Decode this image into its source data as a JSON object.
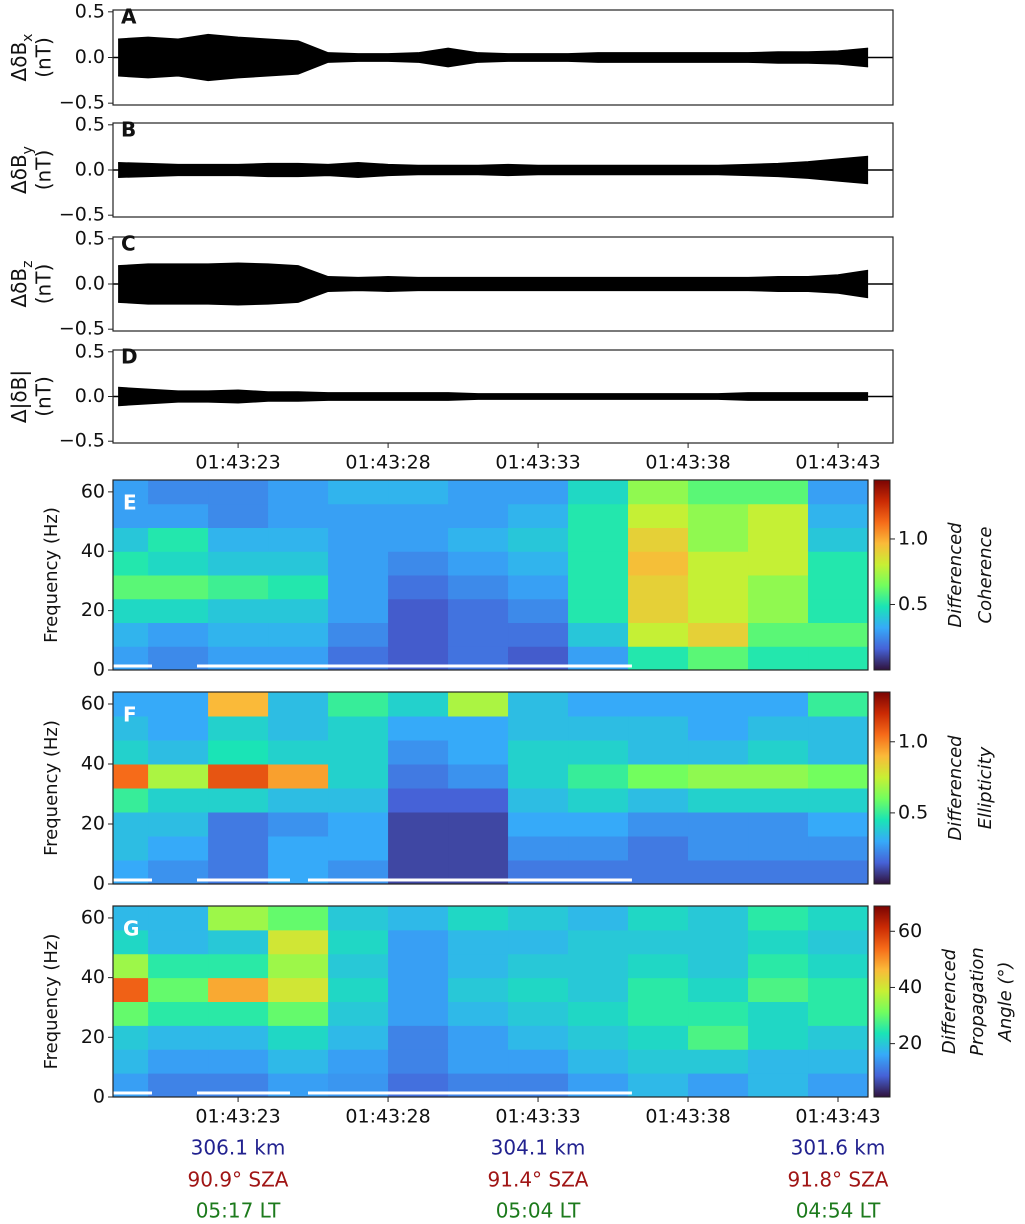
{
  "chart_data": [
    {
      "type": "line",
      "label": "A",
      "ylabel": {
        "main": "ΔδB",
        "sub": "x",
        "unit": "(nT)"
      },
      "color": "#000000",
      "x": [
        19,
        20,
        21,
        22,
        23,
        24,
        25,
        26,
        27,
        28,
        29,
        30,
        31,
        32,
        33,
        34,
        35,
        36,
        37,
        38,
        39,
        40,
        41,
        42,
        43,
        44
      ],
      "values": [
        0.2,
        0.22,
        0.2,
        0.25,
        0.22,
        0.2,
        0.18,
        0.05,
        0.04,
        0.04,
        0.05,
        0.1,
        0.05,
        0.04,
        0.04,
        0.04,
        0.05,
        0.05,
        0.05,
        0.05,
        0.05,
        0.05,
        0.06,
        0.06,
        0.07,
        0.1
      ],
      "xlim": [
        18.83,
        44.83
      ],
      "ylim": [
        -0.52,
        0.52
      ],
      "yticks": [
        0.5,
        {
          "value": 0,
          "label": "0.0"
        },
        {
          "value": -0.5,
          "label": "−0.5"
        }
      ]
    },
    {
      "type": "line",
      "label": "B",
      "ylabel": {
        "main": "ΔδB",
        "sub": "y",
        "unit": "(nT)"
      },
      "color": "#000000",
      "x": [
        19,
        20,
        21,
        22,
        23,
        24,
        25,
        26,
        27,
        28,
        29,
        30,
        31,
        32,
        33,
        34,
        35,
        36,
        37,
        38,
        39,
        40,
        41,
        42,
        43,
        44
      ],
      "values": [
        0.08,
        0.07,
        0.06,
        0.06,
        0.06,
        0.07,
        0.07,
        0.06,
        0.08,
        0.06,
        0.05,
        0.05,
        0.05,
        0.06,
        0.05,
        0.05,
        0.05,
        0.05,
        0.05,
        0.05,
        0.05,
        0.06,
        0.07,
        0.09,
        0.12,
        0.15
      ],
      "xlim": [
        18.83,
        44.83
      ],
      "ylim": [
        -0.52,
        0.52
      ],
      "yticks": [
        0.5,
        {
          "value": 0,
          "label": "0.0"
        },
        {
          "value": -0.5,
          "label": "−0.5"
        }
      ]
    },
    {
      "type": "line",
      "label": "C",
      "ylabel": {
        "main": "ΔδB",
        "sub": "z",
        "unit": "(nT)"
      },
      "color": "#000000",
      "x": [
        19,
        20,
        21,
        22,
        23,
        24,
        25,
        26,
        27,
        28,
        29,
        30,
        31,
        32,
        33,
        34,
        35,
        36,
        37,
        38,
        39,
        40,
        41,
        42,
        43,
        44
      ],
      "values": [
        0.2,
        0.22,
        0.22,
        0.22,
        0.23,
        0.22,
        0.2,
        0.08,
        0.07,
        0.08,
        0.07,
        0.07,
        0.07,
        0.07,
        0.07,
        0.07,
        0.07,
        0.07,
        0.07,
        0.07,
        0.07,
        0.07,
        0.08,
        0.08,
        0.1,
        0.15
      ],
      "xlim": [
        18.83,
        44.83
      ],
      "ylim": [
        -0.52,
        0.52
      ],
      "yticks": [
        0.5,
        {
          "value": 0,
          "label": "0.0"
        },
        {
          "value": -0.5,
          "label": "−0.5"
        }
      ]
    },
    {
      "type": "line",
      "label": "D",
      "ylabel": {
        "main": "Δ|δB|",
        "unit": "(nT)"
      },
      "color": "#000000",
      "x": [
        19,
        20,
        21,
        22,
        23,
        24,
        25,
        26,
        27,
        28,
        29,
        30,
        31,
        32,
        33,
        34,
        35,
        36,
        37,
        38,
        39,
        40,
        41,
        42,
        43,
        44
      ],
      "values": [
        0.1,
        0.08,
        0.06,
        0.06,
        0.07,
        0.05,
        0.05,
        0.04,
        0.04,
        0.04,
        0.04,
        0.04,
        0.03,
        0.03,
        0.03,
        0.03,
        0.03,
        0.03,
        0.03,
        0.03,
        0.03,
        0.04,
        0.04,
        0.04,
        0.04,
        0.04
      ],
      "xlim": [
        18.83,
        44.83
      ],
      "ylim": [
        -0.52,
        0.52
      ],
      "yticks": [
        0.5,
        {
          "value": 0,
          "label": "0.0"
        },
        {
          "value": -0.5,
          "label": "−0.5"
        }
      ],
      "xticks": [
        {
          "value": 23,
          "label": "01:43:23"
        },
        {
          "value": 28,
          "label": "01:43:28"
        },
        {
          "value": 33,
          "label": "01:43:33"
        },
        {
          "value": 38,
          "label": "01:43:38"
        },
        {
          "value": 43,
          "label": "01:43:43"
        }
      ]
    },
    {
      "type": "heatmap",
      "label": "E",
      "ylabel": "Frequency (Hz)",
      "colorbar_label": [
        "Differenced",
        "Coherence"
      ],
      "x": [
        19,
        21,
        23,
        25,
        27,
        29,
        31,
        33,
        35,
        37,
        39,
        41,
        43
      ],
      "y": [
        4,
        12,
        20,
        28,
        36,
        44,
        52,
        60
      ],
      "z": [
        [
          0.3,
          0.25,
          0.3,
          0.3,
          0.2,
          0.15,
          0.2,
          0.15,
          0.3,
          0.5,
          0.6,
          0.5,
          0.5
        ],
        [
          0.35,
          0.3,
          0.35,
          0.35,
          0.25,
          0.15,
          0.2,
          0.2,
          0.4,
          0.8,
          0.9,
          0.6,
          0.6
        ],
        [
          0.45,
          0.45,
          0.4,
          0.4,
          0.3,
          0.15,
          0.2,
          0.25,
          0.5,
          0.9,
          0.8,
          0.7,
          0.5
        ],
        [
          0.6,
          0.6,
          0.55,
          0.5,
          0.3,
          0.2,
          0.25,
          0.3,
          0.5,
          0.9,
          0.8,
          0.7,
          0.5
        ],
        [
          0.5,
          0.45,
          0.4,
          0.4,
          0.3,
          0.25,
          0.3,
          0.35,
          0.5,
          0.95,
          0.8,
          0.8,
          0.5
        ],
        [
          0.4,
          0.5,
          0.35,
          0.35,
          0.3,
          0.3,
          0.35,
          0.4,
          0.5,
          0.9,
          0.7,
          0.8,
          0.4
        ],
        [
          0.3,
          0.3,
          0.25,
          0.3,
          0.3,
          0.3,
          0.3,
          0.35,
          0.5,
          0.8,
          0.7,
          0.8,
          0.35
        ],
        [
          0.3,
          0.25,
          0.25,
          0.3,
          0.35,
          0.35,
          0.3,
          0.3,
          0.45,
          0.7,
          0.6,
          0.6,
          0.3
        ]
      ],
      "xlim": [
        18.83,
        44.0
      ],
      "ylim": [
        0,
        64
      ],
      "yticks": [
        0,
        20,
        40,
        60
      ],
      "clim": [
        0,
        1.45
      ],
      "cticks": [
        0.5,
        {
          "value": 1,
          "label": "1.0"
        }
      ],
      "markers": [
        [
          18.83,
          20.13
        ],
        [
          21.63,
          36.13
        ]
      ],
      "colormap": [
        "#30123b",
        "#4662d7",
        "#36aaf9",
        "#1ae4b6",
        "#72fe5e",
        "#c8ef34",
        "#faba39",
        "#f66b19",
        "#ca2a04",
        "#7a0403"
      ]
    },
    {
      "type": "heatmap",
      "label": "F",
      "ylabel": "Frequency (Hz)",
      "colorbar_label": [
        "Differenced",
        "Ellipticity"
      ],
      "x": [
        19,
        21,
        23,
        25,
        27,
        29,
        31,
        33,
        35,
        37,
        39,
        41,
        43
      ],
      "y": [
        4,
        12,
        20,
        28,
        36,
        44,
        52,
        60
      ],
      "z": [
        [
          0.3,
          0.25,
          0.2,
          0.3,
          0.25,
          0.1,
          0.1,
          0.2,
          0.2,
          0.2,
          0.2,
          0.2,
          0.2
        ],
        [
          0.35,
          0.3,
          0.2,
          0.3,
          0.3,
          0.1,
          0.1,
          0.25,
          0.25,
          0.2,
          0.25,
          0.25,
          0.25
        ],
        [
          0.35,
          0.35,
          0.2,
          0.25,
          0.3,
          0.1,
          0.1,
          0.3,
          0.3,
          0.25,
          0.25,
          0.25,
          0.3
        ],
        [
          0.5,
          0.4,
          0.4,
          0.35,
          0.35,
          0.15,
          0.15,
          0.35,
          0.4,
          0.35,
          0.4,
          0.4,
          0.4
        ],
        [
          1.05,
          0.7,
          1.1,
          0.95,
          0.4,
          0.2,
          0.25,
          0.4,
          0.5,
          0.6,
          0.65,
          0.65,
          0.6
        ],
        [
          0.4,
          0.35,
          0.45,
          0.4,
          0.4,
          0.25,
          0.3,
          0.4,
          0.4,
          0.35,
          0.35,
          0.4,
          0.35
        ],
        [
          0.35,
          0.3,
          0.4,
          0.35,
          0.4,
          0.3,
          0.3,
          0.35,
          0.35,
          0.35,
          0.3,
          0.35,
          0.35
        ],
        [
          0.3,
          0.3,
          0.9,
          0.35,
          0.5,
          0.4,
          0.7,
          0.35,
          0.3,
          0.3,
          0.3,
          0.3,
          0.5
        ]
      ],
      "xlim": [
        18.83,
        44.0
      ],
      "ylim": [
        0,
        64
      ],
      "yticks": [
        0,
        20,
        40,
        60
      ],
      "clim": [
        0,
        1.35
      ],
      "cticks": [
        0.5,
        {
          "value": 1,
          "label": "1.0"
        }
      ],
      "markers": [
        [
          18.83,
          20.13
        ],
        [
          21.63,
          24.73
        ],
        [
          25.33,
          36.13
        ]
      ],
      "colormap": [
        "#30123b",
        "#4662d7",
        "#36aaf9",
        "#1ae4b6",
        "#72fe5e",
        "#c8ef34",
        "#faba39",
        "#f66b19",
        "#ca2a04",
        "#7a0403"
      ]
    },
    {
      "type": "heatmap",
      "label": "G",
      "ylabel": "Frequency (Hz)",
      "colorbar_label": [
        "Differenced",
        "Propagation",
        "Angle (°)"
      ],
      "x": [
        19,
        21,
        23,
        25,
        27,
        29,
        31,
        33,
        35,
        37,
        39,
        41,
        43
      ],
      "y": [
        4,
        12,
        20,
        28,
        36,
        44,
        52,
        60
      ],
      "z": [
        [
          15,
          12,
          12,
          15,
          14,
          10,
          12,
          12,
          15,
          18,
          15,
          18,
          15
        ],
        [
          18,
          15,
          15,
          18,
          15,
          12,
          15,
          15,
          18,
          20,
          20,
          18,
          18
        ],
        [
          20,
          18,
          18,
          22,
          18,
          12,
          15,
          18,
          20,
          22,
          28,
          22,
          20
        ],
        [
          30,
          25,
          25,
          30,
          20,
          15,
          18,
          20,
          22,
          25,
          25,
          22,
          25
        ],
        [
          55,
          30,
          48,
          40,
          22,
          15,
          20,
          22,
          20,
          25,
          22,
          28,
          25
        ],
        [
          35,
          25,
          25,
          35,
          20,
          15,
          18,
          20,
          20,
          22,
          20,
          25,
          22
        ],
        [
          22,
          18,
          20,
          40,
          22,
          15,
          18,
          18,
          20,
          20,
          20,
          22,
          20
        ],
        [
          18,
          18,
          35,
          30,
          20,
          18,
          22,
          20,
          18,
          22,
          20,
          25,
          22
        ]
      ],
      "xlim": [
        18.83,
        44.0
      ],
      "ylim": [
        0,
        64
      ],
      "yticks": [
        0,
        20,
        40,
        60
      ],
      "xticks": [
        {
          "value": 23,
          "label": "01:43:23"
        },
        {
          "value": 28,
          "label": "01:43:28"
        },
        {
          "value": 33,
          "label": "01:43:33"
        },
        {
          "value": 38,
          "label": "01:43:38"
        },
        {
          "value": 43,
          "label": "01:43:43"
        }
      ],
      "clim": [
        1,
        69
      ],
      "cticks": [
        20,
        40,
        60
      ],
      "markers": [
        [
          18.83,
          20.13
        ],
        [
          21.63,
          24.73
        ],
        [
          25.33,
          36.13
        ]
      ],
      "colormap": [
        "#30123b",
        "#4662d7",
        "#36aaf9",
        "#1ae4b6",
        "#72fe5e",
        "#c8ef34",
        "#faba39",
        "#f66b19",
        "#ca2a04",
        "#7a0403"
      ]
    }
  ],
  "footer": [
    [
      "306.1 km",
      "90.9° SZA",
      "05:17 LT"
    ],
    [
      "304.1 km",
      "91.4° SZA",
      "05:04 LT"
    ],
    [
      "301.6 km",
      "91.8° SZA",
      "04:54 LT"
    ]
  ]
}
